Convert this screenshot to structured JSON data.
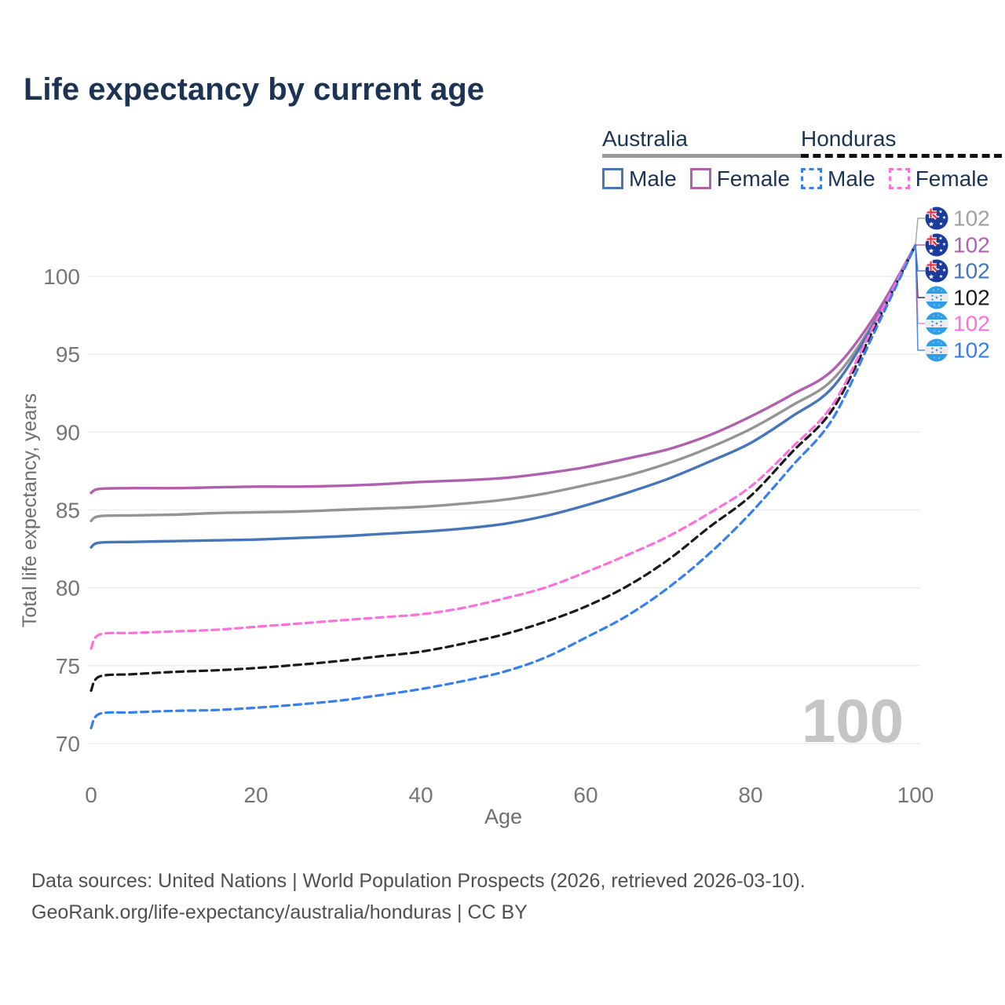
{
  "page": {
    "title": "Life expectancy by current age"
  },
  "legend": {
    "groups": [
      {
        "label": "Australia",
        "line_style": "solid",
        "key_color": "#9a9a9a",
        "items": [
          {
            "label": "Male",
            "color": "#4675b8"
          },
          {
            "label": "Female",
            "color": "#b060ae"
          }
        ]
      },
      {
        "label": "Honduras",
        "line_style": "dashed",
        "key_color": "#111111",
        "items": [
          {
            "label": "Male",
            "color": "#377ef0"
          },
          {
            "label": "Female",
            "color": "#ff70dd"
          }
        ]
      }
    ]
  },
  "chart_data": {
    "type": "line",
    "title": "Life expectancy by current age",
    "xlabel": "Age",
    "ylabel": "Total life expectancy, years",
    "x_ticks": [
      0,
      20,
      40,
      60,
      80,
      100
    ],
    "y_ticks": [
      70,
      75,
      80,
      85,
      90,
      95,
      100
    ],
    "xlim": [
      0,
      100
    ],
    "ylim": [
      69.5,
      103.5
    ],
    "grid": "horizontal",
    "legend_position": "top-right",
    "ages": [
      0,
      1,
      5,
      10,
      15,
      20,
      25,
      30,
      35,
      40,
      45,
      50,
      55,
      60,
      65,
      70,
      75,
      80,
      85,
      90,
      95,
      100
    ],
    "series": [
      {
        "name": "Australia",
        "sex": "all",
        "country": "Australia",
        "color": "#949494",
        "dashed": false,
        "values": [
          84.3,
          84.6,
          84.65,
          84.7,
          84.8,
          84.85,
          84.9,
          85.0,
          85.1,
          85.2,
          85.4,
          85.65,
          86.05,
          86.6,
          87.2,
          88.0,
          89.0,
          90.2,
          91.7,
          93.4,
          97.1,
          102
        ]
      },
      {
        "name": "Australia Female",
        "sex": "female",
        "country": "Australia",
        "color": "#b060ae",
        "dashed": false,
        "values": [
          86.1,
          86.35,
          86.4,
          86.4,
          86.45,
          86.5,
          86.5,
          86.55,
          86.65,
          86.8,
          86.9,
          87.05,
          87.35,
          87.75,
          88.3,
          88.9,
          89.8,
          91.0,
          92.4,
          94.0,
          97.4,
          102
        ]
      },
      {
        "name": "Australia Male",
        "sex": "male",
        "country": "Australia",
        "color": "#4675b8",
        "dashed": false,
        "values": [
          82.6,
          82.9,
          82.95,
          83.0,
          83.05,
          83.1,
          83.2,
          83.3,
          83.45,
          83.6,
          83.8,
          84.1,
          84.6,
          85.3,
          86.1,
          87.0,
          88.1,
          89.3,
          91.0,
          92.9,
          97.0,
          102
        ]
      },
      {
        "name": "Honduras",
        "sex": "all",
        "country": "Honduras",
        "color": "#1a1a1a",
        "dashed": true,
        "values": [
          73.4,
          74.3,
          74.45,
          74.6,
          74.7,
          74.85,
          75.05,
          75.3,
          75.6,
          75.9,
          76.4,
          77.0,
          77.8,
          78.8,
          80.1,
          81.8,
          83.9,
          85.9,
          88.7,
          91.5,
          96.7,
          102
        ]
      },
      {
        "name": "Honduras Female",
        "sex": "female",
        "country": "Honduras",
        "color": "#ff70dd",
        "dashed": true,
        "values": [
          76.1,
          77.0,
          77.1,
          77.2,
          77.3,
          77.5,
          77.7,
          77.9,
          78.1,
          78.3,
          78.7,
          79.3,
          80.0,
          81.0,
          82.1,
          83.3,
          84.8,
          86.5,
          89.0,
          91.8,
          96.9,
          102
        ]
      },
      {
        "name": "Honduras Male",
        "sex": "male",
        "country": "Honduras",
        "color": "#377ef0",
        "dashed": true,
        "values": [
          71.0,
          71.9,
          72.0,
          72.1,
          72.15,
          72.3,
          72.5,
          72.75,
          73.1,
          73.5,
          74.0,
          74.6,
          75.5,
          76.8,
          78.2,
          80.0,
          82.2,
          84.8,
          87.8,
          90.9,
          96.4,
          102
        ]
      }
    ],
    "end_labels": [
      {
        "series": "Australia",
        "flag": "australia",
        "value": "102",
        "color": "#a0a0a0"
      },
      {
        "series": "Australia Female",
        "flag": "australia",
        "value": "102",
        "color": "#b060ae"
      },
      {
        "series": "Australia Male",
        "flag": "australia",
        "value": "102",
        "color": "#4675b8"
      },
      {
        "series": "Honduras",
        "flag": "honduras",
        "value": "102",
        "color": "#1a1a1a"
      },
      {
        "series": "Honduras Female",
        "flag": "honduras",
        "value": "102",
        "color": "#ff70dd"
      },
      {
        "series": "Honduras Male",
        "flag": "honduras",
        "value": "102",
        "color": "#377ef0"
      }
    ],
    "age_counter": "100"
  },
  "footer": {
    "line1": "Data sources: United Nations | World Population Prospects (2026, retrieved 2026-03-10).",
    "line2": "GeoRank.org/life-expectancy/australia/honduras | CC BY"
  }
}
